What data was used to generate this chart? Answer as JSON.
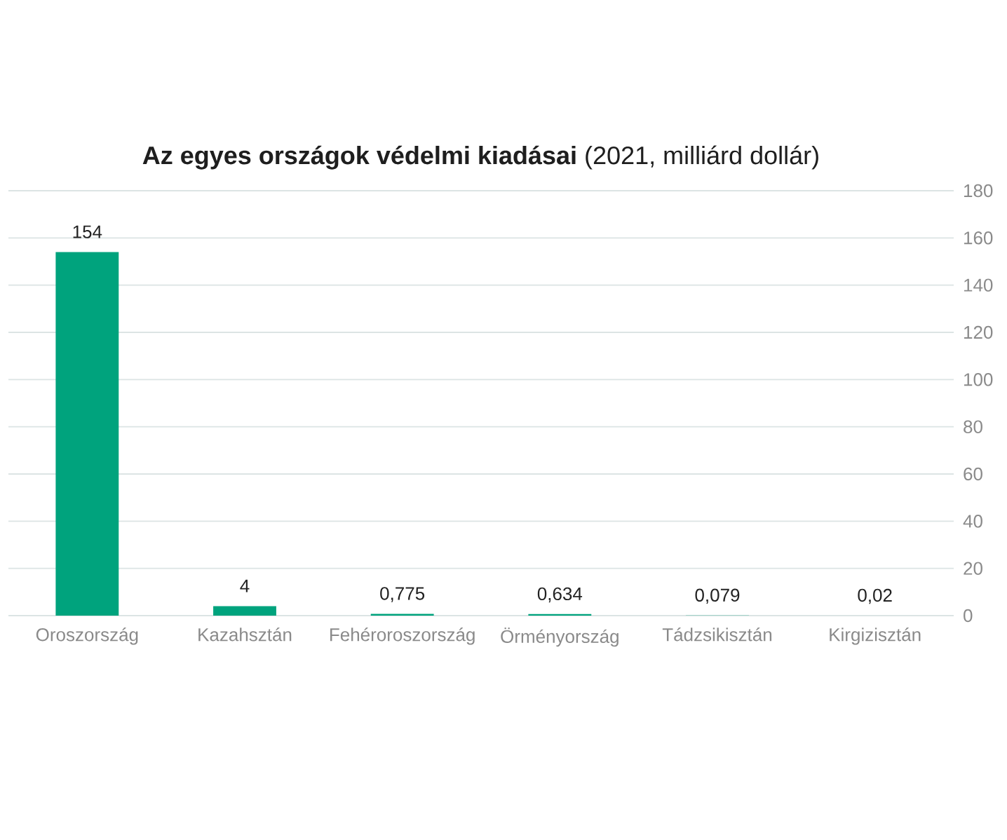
{
  "chart_data": {
    "type": "bar",
    "title": "**Az egyes országok védelmi kiadásai** (2021, milliárd dollár)",
    "categories": [
      "Oroszország",
      "Kazahsztán",
      "Fehéroroszország",
      "Örményország",
      "Tádzsikisztán",
      "Kirgizisztán"
    ],
    "values": [
      154,
      4,
      0.775,
      0.634,
      0.079,
      0.02
    ],
    "value_labels": [
      "154",
      "4",
      "0,775",
      "0,634",
      "0,079",
      "0,02"
    ],
    "color": "#00a37d",
    "ylim": [
      0,
      180
    ],
    "yticks": [
      0,
      20,
      40,
      60,
      80,
      100,
      120,
      140,
      160,
      180
    ],
    "grid": "y"
  }
}
